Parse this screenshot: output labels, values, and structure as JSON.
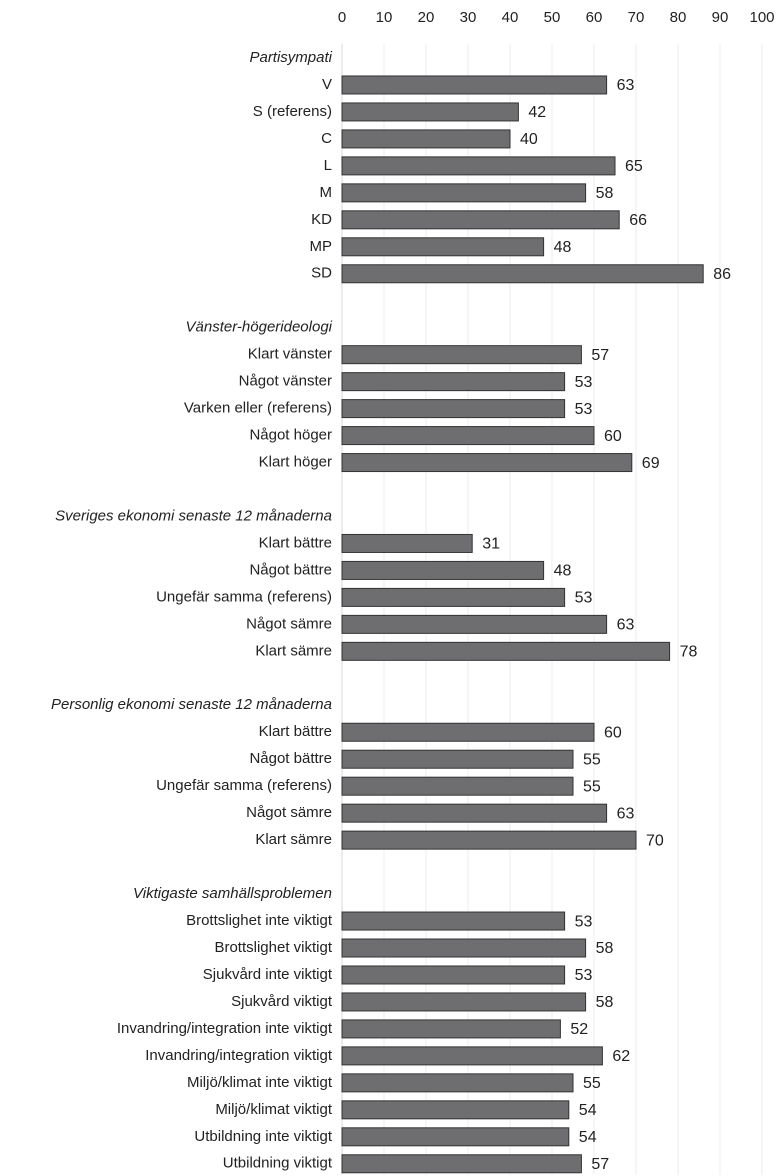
{
  "chart_data": {
    "type": "bar",
    "orientation": "horizontal",
    "color": "#6e6e70",
    "grid": true,
    "xlim": [
      0,
      100
    ],
    "xticks": [
      0,
      10,
      20,
      30,
      40,
      50,
      60,
      70,
      80,
      90,
      100
    ],
    "groups": [
      {
        "title": "Partisympati",
        "categories": [
          "V",
          "S (referens)",
          "C",
          "L",
          "M",
          "KD",
          "MP",
          "SD"
        ],
        "values": [
          63,
          42,
          40,
          65,
          58,
          66,
          48,
          86
        ]
      },
      {
        "title": "Vänster-högerideologi",
        "categories": [
          "Klart vänster",
          "Något vänster",
          "Varken eller (referens)",
          "Något höger",
          "Klart höger"
        ],
        "values": [
          57,
          53,
          53,
          60,
          69
        ]
      },
      {
        "title": "Sveriges ekonomi senaste 12 månaderna",
        "categories": [
          "Klart bättre",
          "Något bättre",
          "Ungefär samma (referens)",
          "Något sämre",
          "Klart sämre"
        ],
        "values": [
          31,
          48,
          53,
          63,
          78
        ]
      },
      {
        "title": "Personlig ekonomi senaste 12 månaderna",
        "categories": [
          "Klart bättre",
          "Något bättre",
          "Ungefär samma (referens)",
          "Något sämre",
          "Klart sämre"
        ],
        "values": [
          60,
          55,
          55,
          63,
          70
        ]
      },
      {
        "title": "Viktigaste samhällsproblemen",
        "categories": [
          "Brottslighet inte viktigt",
          "Brottslighet viktigt",
          "Sjukvård inte viktigt",
          "Sjukvård viktigt",
          "Invandring/integration inte viktigt",
          "Invandring/integration viktigt",
          "Miljö/klimat inte viktigt",
          "Miljö/klimat viktigt",
          "Utbildning inte viktigt",
          "Utbildning viktigt"
        ],
        "values": [
          53,
          58,
          53,
          58,
          52,
          62,
          55,
          54,
          54,
          57
        ]
      }
    ]
  }
}
